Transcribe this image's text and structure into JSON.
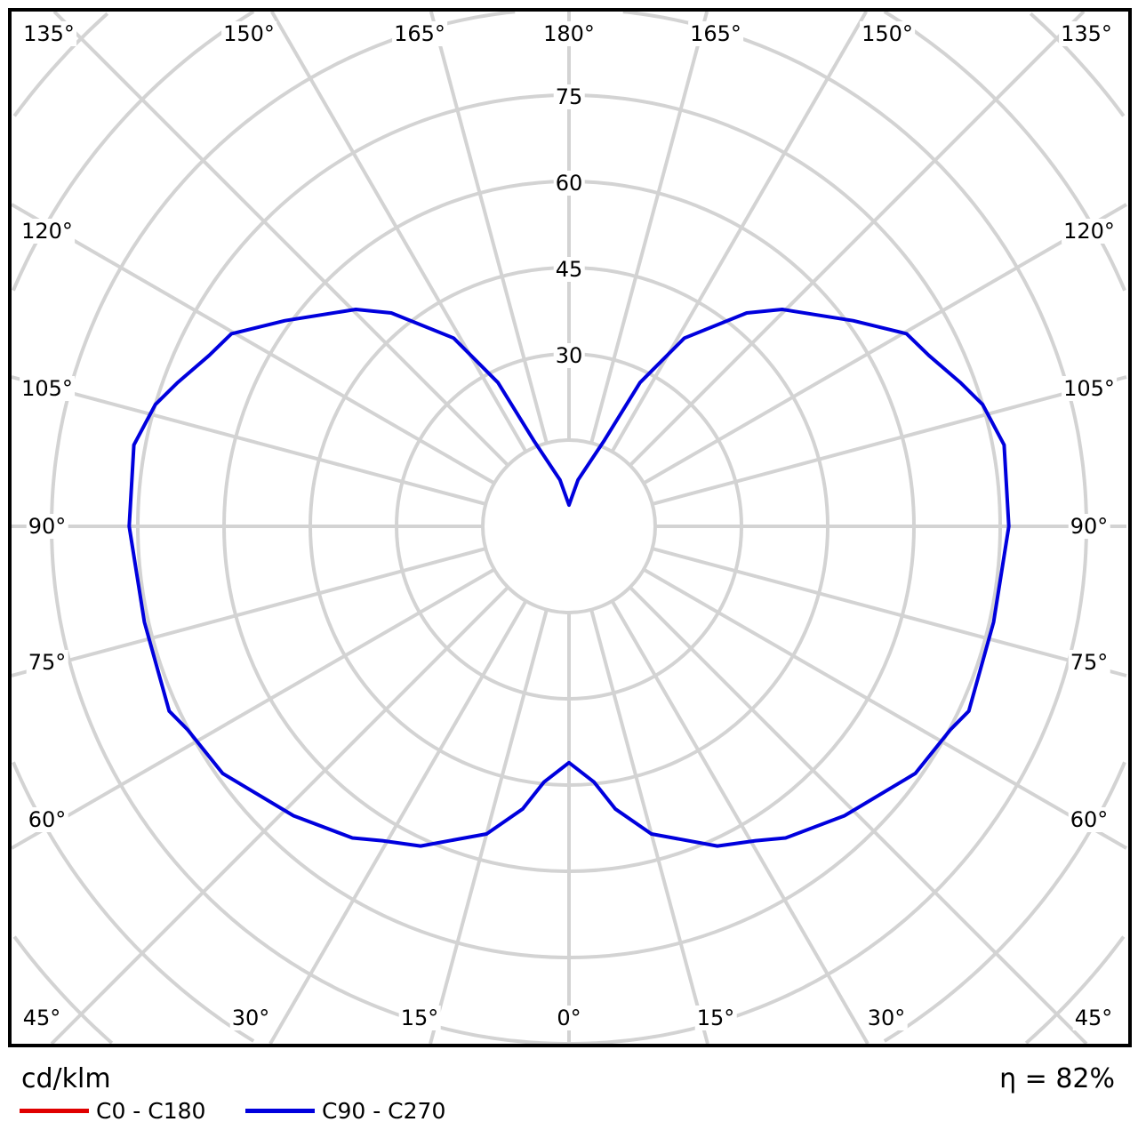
{
  "chart_data": {
    "type": "polar",
    "unit_label": "cd/klm",
    "efficiency_label": "η = 82%",
    "radial_ticks": [
      30,
      45,
      60,
      75
    ],
    "ring_step": 15,
    "angle_step": 15,
    "angle_labels": {
      "top": [
        "135°",
        "150°",
        "165°",
        "180°",
        "165°",
        "150°",
        "135°"
      ],
      "left": [
        "120°",
        "105°",
        "90°",
        "75°",
        "60°"
      ],
      "right": [
        "120°",
        "105°",
        "90°",
        "75°",
        "60°"
      ],
      "bottom": [
        "45°",
        "30°",
        "15°",
        "0°",
        "15°",
        "30°",
        "45°"
      ]
    },
    "grid": true,
    "legend_placement": "bottom-left",
    "series": [
      {
        "name": "C0 - C180",
        "color": "#e00000",
        "gamma": [],
        "values": []
      },
      {
        "name": "C90 - C270",
        "color": "#0000dd",
        "symmetric": true,
        "gamma": [
          0,
          5.6,
          9.3,
          15,
          24.9,
          30.7,
          34.8,
          43.6,
          54.5,
          62,
          65.2,
          77.3,
          90,
          100.6,
          106.4,
          110.2,
          115.4,
          119.7,
          125.9,
          135.5,
          140.2,
          148.5,
          153.7,
          157.6,
          169,
          180
        ],
        "values": [
          41.1,
          44.7,
          49.8,
          55.4,
          61.3,
          63.6,
          66,
          69.5,
          74,
          75.2,
          76.6,
          75.7,
          76.5,
          77,
          75,
          72.5,
          69.3,
          67.6,
          61,
          52.9,
          48.3,
          38.4,
          27.9,
          16.2,
          8.2,
          3.7
        ]
      }
    ]
  }
}
